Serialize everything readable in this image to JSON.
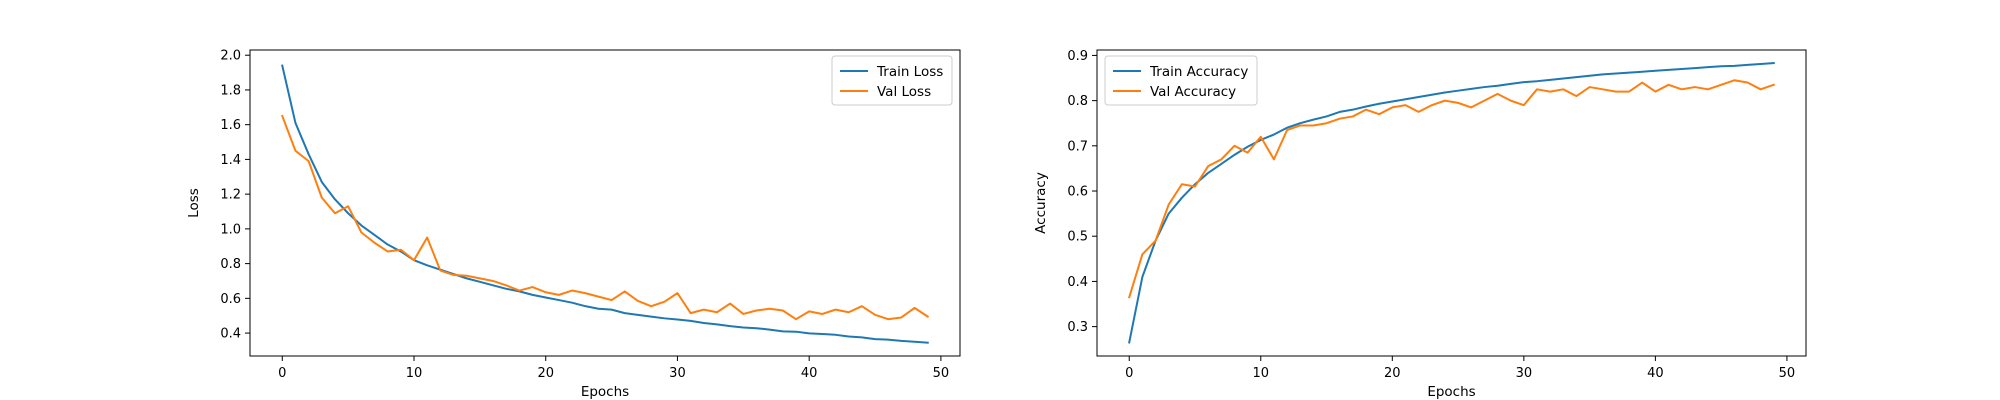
{
  "colors": {
    "train": "#1f77b4",
    "val": "#ff7f0e"
  },
  "chart_data": [
    {
      "type": "line",
      "xlabel": "Epochs",
      "ylabel": "Loss",
      "xlim": [
        -2.45,
        51.45
      ],
      "ylim": [
        0.268,
        2.03
      ],
      "xticks": [
        0,
        10,
        20,
        30,
        40,
        50
      ],
      "xtick_labels": [
        "0",
        "10",
        "20",
        "30",
        "40",
        "50"
      ],
      "yticks": [
        0.4,
        0.6,
        0.8,
        1.0,
        1.2,
        1.4,
        1.6,
        1.8,
        2.0
      ],
      "ytick_labels": [
        "0.4",
        "0.6",
        "0.8",
        "1.0",
        "1.2",
        "1.4",
        "1.6",
        "1.8",
        "2.0"
      ],
      "grid": false,
      "legend": "top-right",
      "x": [
        0,
        1,
        2,
        3,
        4,
        5,
        6,
        7,
        8,
        9,
        10,
        11,
        12,
        13,
        14,
        15,
        16,
        17,
        18,
        19,
        20,
        21,
        22,
        23,
        24,
        25,
        26,
        27,
        28,
        29,
        30,
        31,
        32,
        33,
        34,
        35,
        36,
        37,
        38,
        39,
        40,
        41,
        42,
        43,
        44,
        45,
        46,
        47,
        48,
        49
      ],
      "series": [
        {
          "name": "Train Loss",
          "color_key": "train",
          "values": [
            1.94,
            1.61,
            1.43,
            1.27,
            1.17,
            1.09,
            1.02,
            0.965,
            0.91,
            0.87,
            0.82,
            0.79,
            0.765,
            0.74,
            0.715,
            0.695,
            0.675,
            0.655,
            0.64,
            0.62,
            0.605,
            0.59,
            0.575,
            0.555,
            0.54,
            0.535,
            0.515,
            0.505,
            0.495,
            0.485,
            0.478,
            0.47,
            0.458,
            0.45,
            0.44,
            0.432,
            0.428,
            0.42,
            0.41,
            0.408,
            0.398,
            0.395,
            0.39,
            0.38,
            0.375,
            0.365,
            0.362,
            0.355,
            0.35,
            0.345
          ]
        },
        {
          "name": "Val Loss",
          "color_key": "val",
          "values": [
            1.65,
            1.45,
            1.39,
            1.18,
            1.09,
            1.13,
            0.98,
            0.92,
            0.87,
            0.88,
            0.82,
            0.95,
            0.76,
            0.735,
            0.73,
            0.715,
            0.7,
            0.675,
            0.645,
            0.665,
            0.635,
            0.62,
            0.645,
            0.63,
            0.61,
            0.59,
            0.64,
            0.585,
            0.555,
            0.58,
            0.63,
            0.515,
            0.535,
            0.52,
            0.57,
            0.51,
            0.53,
            0.54,
            0.53,
            0.48,
            0.525,
            0.51,
            0.535,
            0.52,
            0.555,
            0.505,
            0.48,
            0.49,
            0.545,
            0.495
          ]
        }
      ]
    },
    {
      "type": "line",
      "xlabel": "Epochs",
      "ylabel": "Accuracy",
      "xlim": [
        -2.45,
        51.45
      ],
      "ylim": [
        0.235,
        0.912
      ],
      "xticks": [
        0,
        10,
        20,
        30,
        40,
        50
      ],
      "xtick_labels": [
        "0",
        "10",
        "20",
        "30",
        "40",
        "50"
      ],
      "yticks": [
        0.3,
        0.4,
        0.5,
        0.6,
        0.7,
        0.8,
        0.9
      ],
      "ytick_labels": [
        "0.3",
        "0.4",
        "0.5",
        "0.6",
        "0.7",
        "0.8",
        "0.9"
      ],
      "grid": false,
      "legend": "top-left",
      "x": [
        0,
        1,
        2,
        3,
        4,
        5,
        6,
        7,
        8,
        9,
        10,
        11,
        12,
        13,
        14,
        15,
        16,
        17,
        18,
        19,
        20,
        21,
        22,
        23,
        24,
        25,
        26,
        27,
        28,
        29,
        30,
        31,
        32,
        33,
        34,
        35,
        36,
        37,
        38,
        39,
        40,
        41,
        42,
        43,
        44,
        45,
        46,
        47,
        48,
        49
      ],
      "series": [
        {
          "name": "Train Accuracy",
          "color_key": "train",
          "values": [
            0.265,
            0.41,
            0.49,
            0.55,
            0.585,
            0.615,
            0.64,
            0.66,
            0.68,
            0.698,
            0.713,
            0.725,
            0.74,
            0.75,
            0.758,
            0.765,
            0.775,
            0.78,
            0.787,
            0.793,
            0.798,
            0.803,
            0.808,
            0.813,
            0.818,
            0.822,
            0.826,
            0.83,
            0.833,
            0.837,
            0.841,
            0.843,
            0.846,
            0.849,
            0.852,
            0.855,
            0.858,
            0.86,
            0.862,
            0.864,
            0.866,
            0.868,
            0.87,
            0.872,
            0.874,
            0.876,
            0.877,
            0.879,
            0.881,
            0.883
          ]
        },
        {
          "name": "Val Accuracy",
          "color_key": "val",
          "values": [
            0.365,
            0.46,
            0.49,
            0.57,
            0.615,
            0.61,
            0.655,
            0.67,
            0.7,
            0.685,
            0.72,
            0.67,
            0.735,
            0.745,
            0.745,
            0.75,
            0.76,
            0.765,
            0.78,
            0.77,
            0.785,
            0.79,
            0.775,
            0.79,
            0.8,
            0.795,
            0.785,
            0.8,
            0.815,
            0.8,
            0.79,
            0.825,
            0.82,
            0.825,
            0.81,
            0.83,
            0.825,
            0.82,
            0.82,
            0.84,
            0.82,
            0.835,
            0.825,
            0.83,
            0.825,
            0.835,
            0.845,
            0.84,
            0.825,
            0.835
          ]
        }
      ]
    }
  ]
}
